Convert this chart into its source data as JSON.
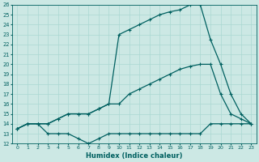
{
  "xlabel": "Humidex (Indice chaleur)",
  "bg_color": "#cce8e4",
  "grid_color": "#aad8d2",
  "line_color": "#006060",
  "xlim": [
    -0.5,
    23.5
  ],
  "ylim": [
    12,
    26
  ],
  "xticks": [
    0,
    1,
    2,
    3,
    4,
    5,
    6,
    7,
    8,
    9,
    10,
    11,
    12,
    13,
    14,
    15,
    16,
    17,
    18,
    19,
    20,
    21,
    22,
    23
  ],
  "yticks": [
    12,
    13,
    14,
    15,
    16,
    17,
    18,
    19,
    20,
    21,
    22,
    23,
    24,
    25,
    26
  ],
  "line1_x": [
    0,
    1,
    2,
    3,
    4,
    5,
    6,
    7,
    8,
    9,
    10,
    11,
    12,
    13,
    14,
    15,
    16,
    17,
    18,
    19,
    20,
    21,
    22,
    23
  ],
  "line1_y": [
    13.5,
    14,
    14,
    13,
    13,
    13,
    12.5,
    12,
    12.5,
    13,
    13,
    13,
    13,
    13,
    13,
    13,
    13,
    13,
    13,
    14,
    14,
    14,
    14,
    14
  ],
  "line2_x": [
    0,
    1,
    2,
    3,
    4,
    5,
    6,
    7,
    8,
    9,
    10,
    11,
    12,
    13,
    14,
    15,
    16,
    17,
    18,
    19,
    20,
    21,
    22,
    23
  ],
  "line2_y": [
    13.5,
    14,
    14,
    14,
    14.5,
    15,
    15,
    15,
    15.5,
    16,
    16,
    17,
    17.5,
    18,
    18.5,
    19,
    19.5,
    19.8,
    20,
    20,
    17,
    15,
    14.5,
    14
  ],
  "line3_x": [
    0,
    1,
    2,
    3,
    4,
    5,
    6,
    7,
    8,
    9,
    10,
    11,
    12,
    13,
    14,
    15,
    16,
    17,
    18,
    19,
    20,
    21,
    22,
    23
  ],
  "line3_y": [
    13.5,
    14,
    14,
    14,
    14.5,
    15,
    15,
    15,
    15.5,
    16,
    23,
    23.5,
    24,
    24.5,
    25,
    25.3,
    25.5,
    26,
    26,
    22.5,
    20,
    17,
    15,
    14
  ]
}
